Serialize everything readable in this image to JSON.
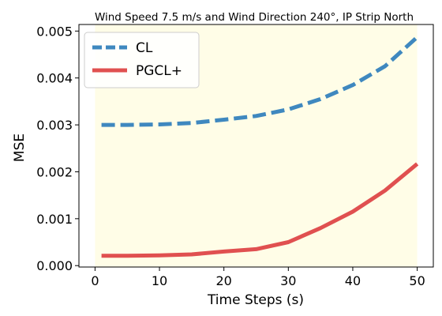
{
  "chart_data": {
    "type": "line",
    "title": "Wind Speed 7.5 m/s and Wind Direction 240°, IP Strip North",
    "xlabel": "Time Steps (s)",
    "ylabel": "MSE",
    "xlim": [
      -2.5,
      52.5
    ],
    "ylim": [
      -3e-05,
      0.00514
    ],
    "x_ticks": [
      0,
      10,
      20,
      30,
      40,
      50
    ],
    "x_tick_labels": [
      "0",
      "10",
      "20",
      "30",
      "40",
      "50"
    ],
    "y_ticks": [
      0,
      0.001,
      0.002,
      0.003,
      0.004,
      0.005
    ],
    "y_tick_labels": [
      "0.000",
      "0.001",
      "0.002",
      "0.003",
      "0.004",
      "0.005"
    ],
    "shaded_region": {
      "x": [
        0,
        50
      ],
      "color": "#fffde7"
    },
    "legend": {
      "position": "top-left"
    },
    "grid": false,
    "x": [
      1,
      5,
      10,
      15,
      20,
      25,
      30,
      35,
      40,
      45,
      50
    ],
    "series": [
      {
        "name": "CL",
        "color": "#3f88bf",
        "style": "dashed",
        "values": [
          0.003,
          0.003,
          0.00301,
          0.00304,
          0.00311,
          0.00319,
          0.00333,
          0.00355,
          0.00385,
          0.00425,
          0.00487
        ]
      },
      {
        "name": "PGCL+",
        "color": "#e05050",
        "style": "solid",
        "values": [
          0.00021,
          0.00021,
          0.00022,
          0.00024,
          0.0003,
          0.00035,
          0.0005,
          0.0008,
          0.00115,
          0.0016,
          0.00217
        ]
      }
    ]
  }
}
